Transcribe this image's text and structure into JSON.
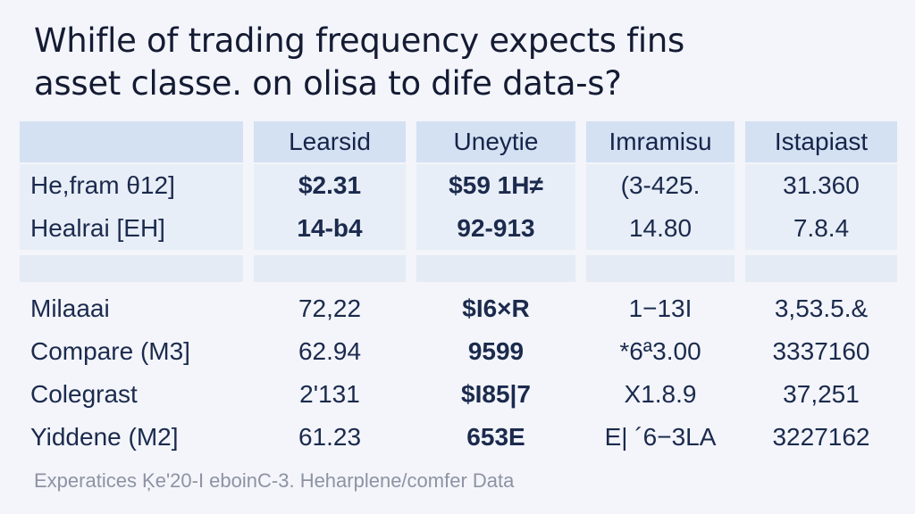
{
  "title": {
    "line1": "Whifle of trading frequency expects fins",
    "line2": "asset classe. on olisa to dife data-s?"
  },
  "table": {
    "headers": [
      "",
      "Learsid",
      "Uneytie",
      "Imramisu",
      "Istapiast"
    ],
    "rows_top": [
      [
        "He,fram θ12]",
        "$2.31",
        "$59 1H≠",
        "(3-425.",
        "31.360"
      ],
      [
        "Healrai [ΕH]",
        "14-b4",
        "92-913",
        "14.80",
        "7.8.4"
      ]
    ],
    "rows_bottom": [
      [
        "Milaaai",
        "72,22",
        "$I6×R",
        "1−13I",
        "3,53.5.&"
      ],
      [
        "Compare (M3]",
        "62.94",
        "9599",
        "*6ª3.00",
        "3337160"
      ],
      [
        "Colegrast",
        "2'131",
        "$I85|7",
        "X1.8.9",
        "37,251"
      ],
      [
        "Yiddene (M2]",
        "61.23",
        "653E",
        "E| ´6−3LA",
        "3227162"
      ]
    ]
  },
  "footer": "Experatices Ķе'20-I eboinC-3. Heharplene/comfer Data"
}
